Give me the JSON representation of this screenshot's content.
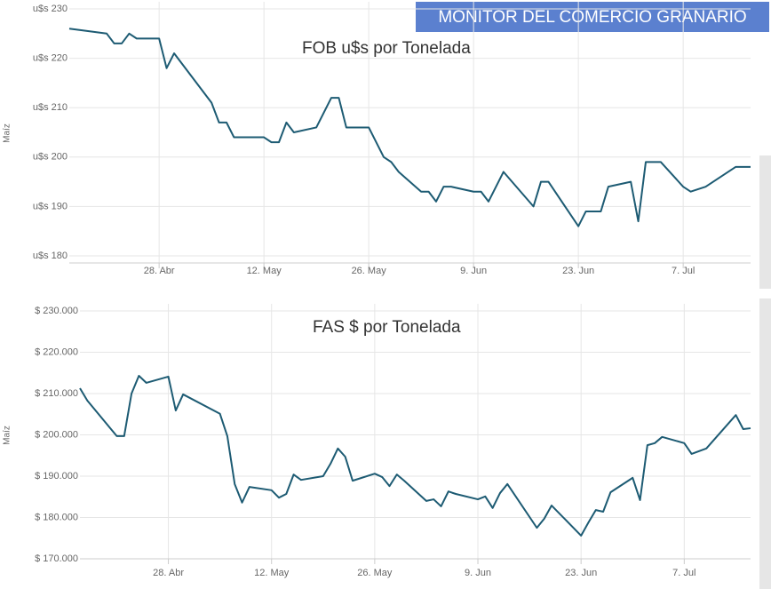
{
  "header": {
    "title": "MONITOR DEL COMERCIO GRANARIO"
  },
  "chart_data": [
    {
      "type": "line",
      "title": "FOB u$s por Tonelada",
      "ylabel": "Maíz",
      "color": "#1d5b73",
      "grid": true,
      "xlim": [
        "04-16",
        "07-16"
      ],
      "xticks": [
        {
          "value": "04-28",
          "label": "28. Abr"
        },
        {
          "value": "05-12",
          "label": "12. May"
        },
        {
          "value": "05-26",
          "label": "26. May"
        },
        {
          "value": "06-09",
          "label": "9. Jun"
        },
        {
          "value": "06-23",
          "label": "23. Jun"
        },
        {
          "value": "07-07",
          "label": "7. Jul"
        }
      ],
      "ylim": [
        180,
        230
      ],
      "yticks": [
        {
          "value": 180,
          "label": "u$s 180"
        },
        {
          "value": 190,
          "label": "u$s 190"
        },
        {
          "value": 200,
          "label": "u$s 200"
        },
        {
          "value": 210,
          "label": "u$s 210"
        },
        {
          "value": 220,
          "label": "u$s 220"
        },
        {
          "value": 230,
          "label": "u$s 230"
        }
      ],
      "x": [
        "04-16",
        "04-21",
        "04-22",
        "04-23",
        "04-24",
        "04-25",
        "04-28",
        "04-29",
        "04-30",
        "05-05",
        "05-06",
        "05-07",
        "05-08",
        "05-09",
        "05-12",
        "05-13",
        "05-14",
        "05-15",
        "05-16",
        "05-19",
        "05-21",
        "05-22",
        "05-23",
        "05-26",
        "05-28",
        "05-29",
        "05-30",
        "06-02",
        "06-03",
        "06-04",
        "06-05",
        "06-06",
        "06-09",
        "06-10",
        "06-11",
        "06-13",
        "06-17",
        "06-18",
        "06-19",
        "06-23",
        "06-24",
        "06-25",
        "06-26",
        "06-27",
        "06-30",
        "07-01",
        "07-02",
        "07-03",
        "07-04",
        "07-07",
        "07-08",
        "07-10",
        "07-14",
        "07-16"
      ],
      "values": [
        226,
        225,
        223,
        223,
        225,
        224,
        224,
        218,
        221,
        211,
        207,
        207,
        204,
        204,
        204,
        203,
        203,
        207,
        205,
        206,
        212,
        212,
        206,
        206,
        200,
        199,
        197,
        193,
        193,
        191,
        194,
        194,
        193,
        193,
        191,
        197,
        190,
        195,
        195,
        186,
        189,
        189,
        189,
        194,
        195,
        187,
        199,
        199,
        199,
        194,
        193,
        194,
        198,
        198
      ]
    },
    {
      "type": "line",
      "title": "FAS $ por Tonelada",
      "ylabel": "Maíz",
      "color": "#1d5b73",
      "grid": true,
      "xlim": [
        "04-16",
        "07-16"
      ],
      "xticks": [
        {
          "value": "04-28",
          "label": "28. Abr"
        },
        {
          "value": "05-12",
          "label": "12. May"
        },
        {
          "value": "05-26",
          "label": "26. May"
        },
        {
          "value": "06-09",
          "label": "9. Jun"
        },
        {
          "value": "06-23",
          "label": "23. Jun"
        },
        {
          "value": "07-07",
          "label": "7. Jul"
        }
      ],
      "ylim": [
        170000,
        230000
      ],
      "yticks": [
        {
          "value": 170000,
          "label": "$ 170.000"
        },
        {
          "value": 180000,
          "label": "$ 180.000"
        },
        {
          "value": 190000,
          "label": "$ 190.000"
        },
        {
          "value": 200000,
          "label": "$ 200.000"
        },
        {
          "value": 210000,
          "label": "$ 210.000"
        },
        {
          "value": 220000,
          "label": "$ 220.000"
        },
        {
          "value": 230000,
          "label": "$ 230.000"
        }
      ],
      "x": [
        "04-16",
        "04-17",
        "04-21",
        "04-22",
        "04-23",
        "04-24",
        "04-25",
        "04-28",
        "04-29",
        "04-30",
        "05-05",
        "05-06",
        "05-07",
        "05-08",
        "05-09",
        "05-12",
        "05-13",
        "05-14",
        "05-15",
        "05-16",
        "05-19",
        "05-20",
        "05-21",
        "05-22",
        "05-23",
        "05-26",
        "05-27",
        "05-28",
        "05-29",
        "05-30",
        "06-02",
        "06-03",
        "06-04",
        "06-05",
        "06-06",
        "06-09",
        "06-10",
        "06-11",
        "06-12",
        "06-13",
        "06-17",
        "06-18",
        "06-19",
        "06-23",
        "06-24",
        "06-25",
        "06-26",
        "06-27",
        "06-30",
        "07-01",
        "07-02",
        "07-03",
        "07-04",
        "07-07",
        "07-08",
        "07-10",
        "07-14",
        "07-15",
        "07-16"
      ],
      "values": [
        211300,
        208300,
        199700,
        199700,
        210000,
        214300,
        212600,
        214100,
        205900,
        209800,
        205100,
        199700,
        188100,
        183600,
        187400,
        186600,
        184800,
        185700,
        190400,
        189100,
        190000,
        193000,
        196700,
        194700,
        188900,
        190600,
        189800,
        187600,
        190400,
        188900,
        184000,
        184400,
        182700,
        186300,
        185700,
        184400,
        185100,
        182300,
        185900,
        188100,
        177500,
        179700,
        182900,
        175600,
        178800,
        181800,
        181400,
        186100,
        189600,
        184200,
        197500,
        198000,
        199500,
        198000,
        195400,
        196700,
        204800,
        201400,
        201600
      ]
    }
  ]
}
